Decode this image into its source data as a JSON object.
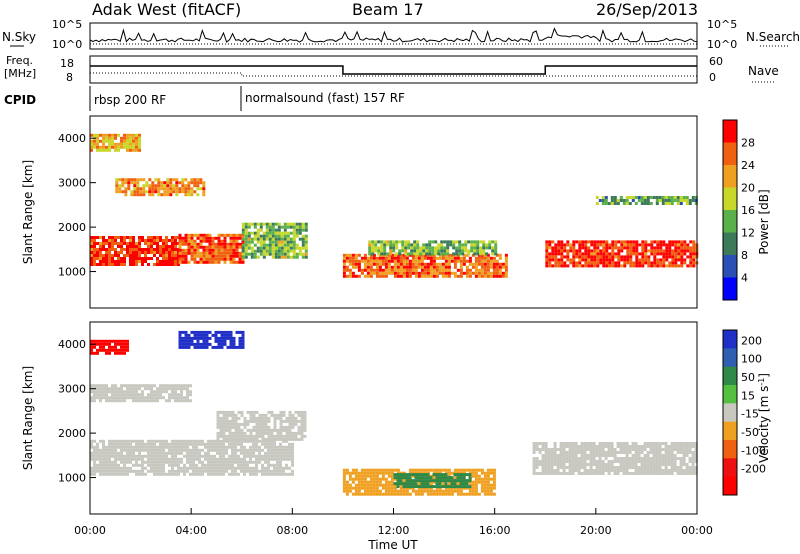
{
  "header": {
    "station": "Adak West (fitACF)",
    "beam": "Beam 17",
    "date": "26/Sep/2013"
  },
  "noise_panel": {
    "left_label": "N.Sky",
    "right_label": "N.Search",
    "ticks_left": [
      "10^5",
      "10^0"
    ],
    "ticks_right": [
      "10^5",
      "10^0"
    ]
  },
  "freq_panel": {
    "left_label_1": "Freq.",
    "left_label_2": "[MHz]",
    "ticks_left": [
      "18",
      "8"
    ],
    "right_label": "Nave",
    "ticks_right": [
      "60",
      "0"
    ]
  },
  "cpid": {
    "label": "CPID",
    "segments": [
      {
        "text": "rbsp 200 RF",
        "start_hour": 0
      },
      {
        "text": "normalsound (fast) 157 RF",
        "start_hour": 6
      }
    ]
  },
  "axes": {
    "xlabel": "Time UT",
    "xticks": [
      "00:00",
      "04:00",
      "08:00",
      "12:00",
      "16:00",
      "20:00",
      "00:00"
    ],
    "ylabel": "Slant Range [km]",
    "yticks": [
      "1000",
      "2000",
      "3000",
      "4000"
    ]
  },
  "power_colorbar": {
    "label": "Power [dB]",
    "ticks": [
      "4",
      "8",
      "12",
      "16",
      "20",
      "24",
      "28"
    ],
    "colors": [
      "#0000ff",
      "#2a4fb5",
      "#3c7a5a",
      "#5ab04a",
      "#c8d82a",
      "#f0a020",
      "#f06010",
      "#ff0000"
    ]
  },
  "velocity_colorbar": {
    "label": "Velocity [m s",
    "label_sup": "-1",
    "label_end": "]",
    "ticks": [
      "200",
      "100",
      "50",
      "15",
      "-15",
      "-50",
      "-100",
      "-200"
    ],
    "colors": [
      "#1f2fc8",
      "#2f5fb0",
      "#2f8a4a",
      "#55c040",
      "#c8c8c0",
      "#f0a020",
      "#f06010",
      "#ee1010",
      "#ff0000"
    ]
  },
  "chart_data": [
    {
      "type": "heatmap",
      "title": "Power",
      "xlabel": "Time UT",
      "ylabel": "Slant Range [km]",
      "xlim": [
        0,
        24
      ],
      "ylim": [
        180,
        4500
      ],
      "colorbar_range": [
        0,
        30
      ],
      "bands": [
        {
          "t": [
            0,
            3.5
          ],
          "r": [
            1150,
            1800
          ],
          "value": 27
        },
        {
          "t": [
            3.5,
            6
          ],
          "r": [
            1200,
            1850
          ],
          "value": 25
        },
        {
          "t": [
            6,
            8.5
          ],
          "r": [
            1300,
            2100
          ],
          "value": 14
        },
        {
          "t": [
            1,
            4.5
          ],
          "r": [
            2700,
            3100
          ],
          "value": 22
        },
        {
          "t": [
            0,
            2
          ],
          "r": [
            3700,
            4100
          ],
          "value": 20
        },
        {
          "t": [
            10,
            16.5
          ],
          "r": [
            900,
            1400
          ],
          "value": 24
        },
        {
          "t": [
            11,
            16
          ],
          "r": [
            1400,
            1700
          ],
          "value": 14
        },
        {
          "t": [
            18,
            24
          ],
          "r": [
            1150,
            1700
          ],
          "value": 27
        },
        {
          "t": [
            20,
            24
          ],
          "r": [
            2500,
            2700
          ],
          "value": 12
        }
      ]
    },
    {
      "type": "heatmap",
      "title": "Velocity",
      "xlabel": "Time UT",
      "ylabel": "Slant Range [km]",
      "xlim": [
        0,
        24
      ],
      "ylim": [
        180,
        4500
      ],
      "colorbar_range": [
        -200,
        200
      ],
      "bands": [
        {
          "t": [
            0,
            8
          ],
          "r": [
            1100,
            1850
          ],
          "value": 0
        },
        {
          "t": [
            5,
            8.5
          ],
          "r": [
            1850,
            2500
          ],
          "value": 0
        },
        {
          "t": [
            0,
            4
          ],
          "r": [
            2750,
            3100
          ],
          "value": 0
        },
        {
          "t": [
            10,
            16
          ],
          "r": [
            600,
            1200
          ],
          "value": -40
        },
        {
          "t": [
            12,
            15
          ],
          "r": [
            800,
            1100
          ],
          "value": 40
        },
        {
          "t": [
            17.5,
            24
          ],
          "r": [
            1100,
            1800
          ],
          "value": 0
        },
        {
          "t": [
            0,
            1.5
          ],
          "r": [
            3800,
            4100
          ],
          "value": -200
        },
        {
          "t": [
            3.5,
            6
          ],
          "r": [
            3900,
            4300
          ],
          "value": 200
        }
      ]
    }
  ]
}
